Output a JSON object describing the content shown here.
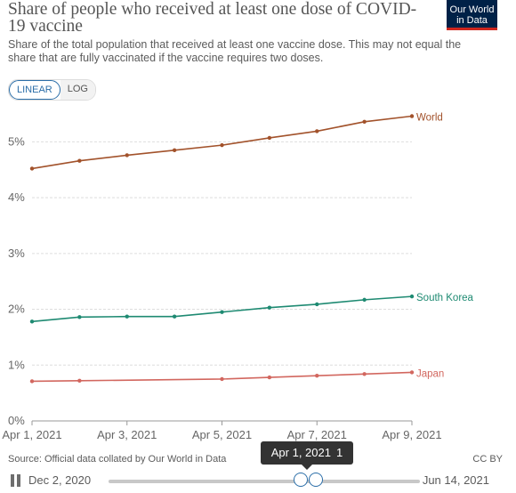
{
  "header": {
    "title": "Share of people who received at least one dose of COVID-19 vaccine",
    "subtitle": "Share of the total population that received at least one vaccine dose. This may not equal the share that are fully vaccinated if the vaccine requires two doses.",
    "logo_line1": "Our World",
    "logo_line2": "in Data"
  },
  "controls": {
    "linear_label": "LINEAR",
    "log_label": "LOG"
  },
  "colors": {
    "World": "#a2522b",
    "South Korea": "#1e8a72",
    "Japan": "#d2675f",
    "grid": "#dddddd",
    "axis": "#666666"
  },
  "chart_data": {
    "type": "line",
    "x": [
      "2021-04-01",
      "2021-04-02",
      "2021-04-03",
      "2021-04-04",
      "2021-04-05",
      "2021-04-06",
      "2021-04-07",
      "2021-04-08",
      "2021-04-09"
    ],
    "x_tick_labels": [
      "Apr 1, 2021",
      "Apr 3, 2021",
      "Apr 5, 2021",
      "Apr 7, 2021",
      "Apr 9, 2021"
    ],
    "x_tick_values": [
      "2021-04-01",
      "2021-04-03",
      "2021-04-05",
      "2021-04-07",
      "2021-04-09"
    ],
    "ylim": [
      0,
      5.5
    ],
    "y_ticks": [
      0,
      1,
      2,
      3,
      4,
      5
    ],
    "y_tick_labels": [
      "0%",
      "1%",
      "2%",
      "3%",
      "4%",
      "5%"
    ],
    "grid": true,
    "series": [
      {
        "name": "World",
        "x": [
          "2021-04-01",
          "2021-04-02",
          "2021-04-03",
          "2021-04-04",
          "2021-04-05",
          "2021-04-06",
          "2021-04-07",
          "2021-04-08",
          "2021-04-09"
        ],
        "values": [
          4.52,
          4.66,
          4.76,
          4.85,
          4.94,
          5.07,
          5.19,
          5.36,
          5.46
        ]
      },
      {
        "name": "South Korea",
        "x": [
          "2021-04-01",
          "2021-04-02",
          "2021-04-03",
          "2021-04-04",
          "2021-04-05",
          "2021-04-06",
          "2021-04-07",
          "2021-04-08",
          "2021-04-09"
        ],
        "values": [
          1.78,
          1.86,
          1.87,
          1.87,
          1.95,
          2.03,
          2.09,
          2.17,
          2.23
        ]
      },
      {
        "name": "Japan",
        "x": [
          "2021-04-01",
          "2021-04-02",
          "2021-04-05",
          "2021-04-06",
          "2021-04-07",
          "2021-04-08",
          "2021-04-09"
        ],
        "values": [
          0.71,
          0.72,
          0.75,
          0.78,
          0.81,
          0.84,
          0.87
        ]
      }
    ]
  },
  "footer": {
    "source": "Source: Official data collated by Our World in Data",
    "license": "CC BY"
  },
  "timeline": {
    "start_label": "Dec 2, 2020",
    "end_label": "Jun 14, 2021",
    "tooltip_date": "Apr 1, 2021",
    "tooltip_count": "1",
    "start_date": "2020-12-02",
    "end_date": "2021-06-14",
    "selected_start": "2021-04-01",
    "selected_end": "2021-04-09"
  }
}
